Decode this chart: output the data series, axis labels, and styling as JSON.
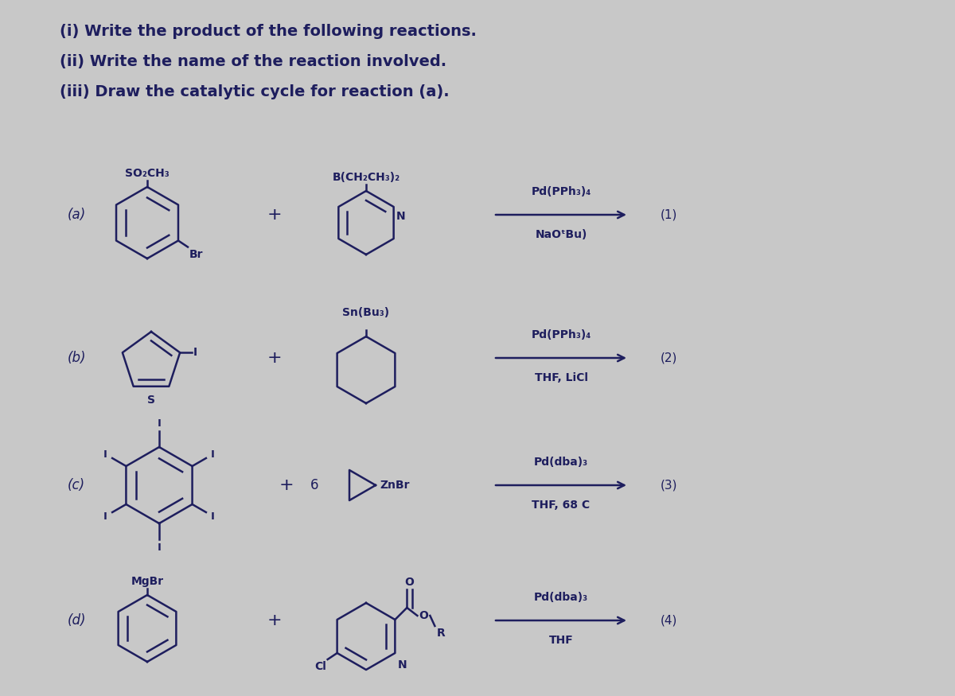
{
  "bg_color": "#c8c8c8",
  "text_color": "#1e1e5e",
  "title_lines": [
    "(i) Write the product of the following reactions.",
    "(ii) Write the name of the reaction involved.",
    "(iii) Draw the catalytic cycle for reaction (a)."
  ],
  "reaction_labels": [
    "(a)",
    "(b)",
    "(c)",
    "(d)"
  ],
  "reaction_numbers": [
    "(1)",
    "(2)",
    "(3)",
    "(4)"
  ],
  "reaction_conditions": [
    [
      "Pd(PPh₃)₄",
      "NaOᵗBu)"
    ],
    [
      "Pd(PPh₃)₄",
      "THF, LiCl"
    ],
    [
      "Pd(dba)₃",
      "THF, 68 C"
    ],
    [
      "Pd(dba)₃",
      "THF"
    ]
  ],
  "figsize": [
    12.0,
    8.75
  ],
  "dpi": 100
}
